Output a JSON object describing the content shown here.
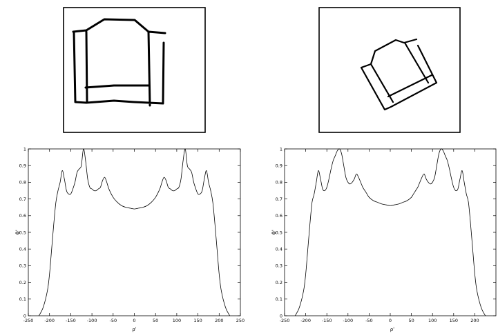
{
  "chart_data": [
    {
      "type": "line",
      "xlabel": "ρ'",
      "ylabel": "Φ'",
      "xlim": [
        -250,
        250
      ],
      "ylim": [
        0,
        1
      ],
      "xticks": [
        -250,
        -200,
        -150,
        -100,
        -50,
        0,
        50,
        100,
        150,
        200,
        250
      ],
      "yticks": [
        0,
        0.1,
        0.2,
        0.3,
        0.4,
        0.5,
        0.6,
        0.7,
        0.8,
        0.9,
        1
      ],
      "grid": false,
      "series": [
        {
          "x": [
            -225,
            -215,
            -205,
            -200,
            -195,
            -190,
            -185,
            -180,
            -175,
            -170,
            -165,
            -160,
            -155,
            -150,
            -145,
            -140,
            -135,
            -130,
            -125,
            -120,
            -115,
            -110,
            -105,
            -100,
            -95,
            -90,
            -85,
            -80,
            -75,
            -70,
            -65,
            -60,
            -50,
            -40,
            -30,
            -20,
            -10,
            0,
            10,
            20,
            30,
            40,
            50,
            60,
            65,
            70,
            75,
            80,
            85,
            90,
            95,
            100,
            105,
            110,
            115,
            120,
            125,
            130,
            135,
            140,
            145,
            150,
            155,
            160,
            165,
            170,
            175,
            180,
            185,
            190,
            195,
            200,
            205,
            215,
            225
          ],
          "y": [
            0,
            0.05,
            0.15,
            0.25,
            0.4,
            0.55,
            0.68,
            0.75,
            0.8,
            0.87,
            0.82,
            0.75,
            0.73,
            0.73,
            0.76,
            0.8,
            0.86,
            0.88,
            0.9,
            1.0,
            0.93,
            0.82,
            0.77,
            0.76,
            0.75,
            0.75,
            0.76,
            0.77,
            0.81,
            0.83,
            0.8,
            0.76,
            0.71,
            0.68,
            0.66,
            0.65,
            0.645,
            0.64,
            0.645,
            0.65,
            0.66,
            0.68,
            0.71,
            0.76,
            0.8,
            0.83,
            0.81,
            0.77,
            0.76,
            0.75,
            0.75,
            0.76,
            0.77,
            0.82,
            0.93,
            1.0,
            0.9,
            0.88,
            0.86,
            0.8,
            0.76,
            0.73,
            0.73,
            0.75,
            0.82,
            0.87,
            0.8,
            0.75,
            0.68,
            0.55,
            0.4,
            0.25,
            0.15,
            0.05,
            0
          ]
        }
      ]
    },
    {
      "type": "line",
      "xlabel": "ρ'",
      "ylabel": "Φ'",
      "xlim": [
        -250,
        250
      ],
      "ylim": [
        0,
        1
      ],
      "xticks": [
        -250,
        -200,
        -150,
        -100,
        -50,
        0,
        50,
        100,
        150,
        200
      ],
      "yticks": [
        0,
        0.1,
        0.2,
        0.3,
        0.4,
        0.5,
        0.6,
        0.7,
        0.8,
        0.9,
        1
      ],
      "grid": false,
      "series": [
        {
          "x": [
            -225,
            -215,
            -205,
            -200,
            -195,
            -190,
            -185,
            -180,
            -175,
            -170,
            -165,
            -160,
            -155,
            -150,
            -145,
            -140,
            -135,
            -130,
            -125,
            -120,
            -115,
            -110,
            -105,
            -100,
            -95,
            -90,
            -85,
            -80,
            -75,
            -70,
            -65,
            -60,
            -55,
            -50,
            -40,
            -30,
            -20,
            -10,
            0,
            10,
            20,
            30,
            40,
            50,
            55,
            60,
            65,
            70,
            75,
            80,
            85,
            90,
            95,
            100,
            105,
            110,
            115,
            120,
            125,
            130,
            135,
            140,
            145,
            150,
            155,
            160,
            165,
            170,
            175,
            180,
            185,
            190,
            195,
            200,
            205,
            215,
            225
          ],
          "y": [
            0,
            0.05,
            0.15,
            0.25,
            0.4,
            0.55,
            0.68,
            0.73,
            0.8,
            0.87,
            0.82,
            0.76,
            0.75,
            0.77,
            0.82,
            0.88,
            0.93,
            0.96,
            0.99,
            1.0,
            0.97,
            0.9,
            0.83,
            0.8,
            0.79,
            0.8,
            0.82,
            0.85,
            0.83,
            0.8,
            0.77,
            0.75,
            0.73,
            0.71,
            0.69,
            0.68,
            0.67,
            0.665,
            0.66,
            0.665,
            0.67,
            0.68,
            0.69,
            0.71,
            0.73,
            0.75,
            0.77,
            0.8,
            0.83,
            0.85,
            0.82,
            0.8,
            0.79,
            0.8,
            0.83,
            0.9,
            0.97,
            1.0,
            0.99,
            0.96,
            0.93,
            0.88,
            0.82,
            0.77,
            0.75,
            0.76,
            0.82,
            0.87,
            0.8,
            0.73,
            0.68,
            0.55,
            0.4,
            0.25,
            0.15,
            0.05,
            0
          ]
        }
      ]
    }
  ]
}
